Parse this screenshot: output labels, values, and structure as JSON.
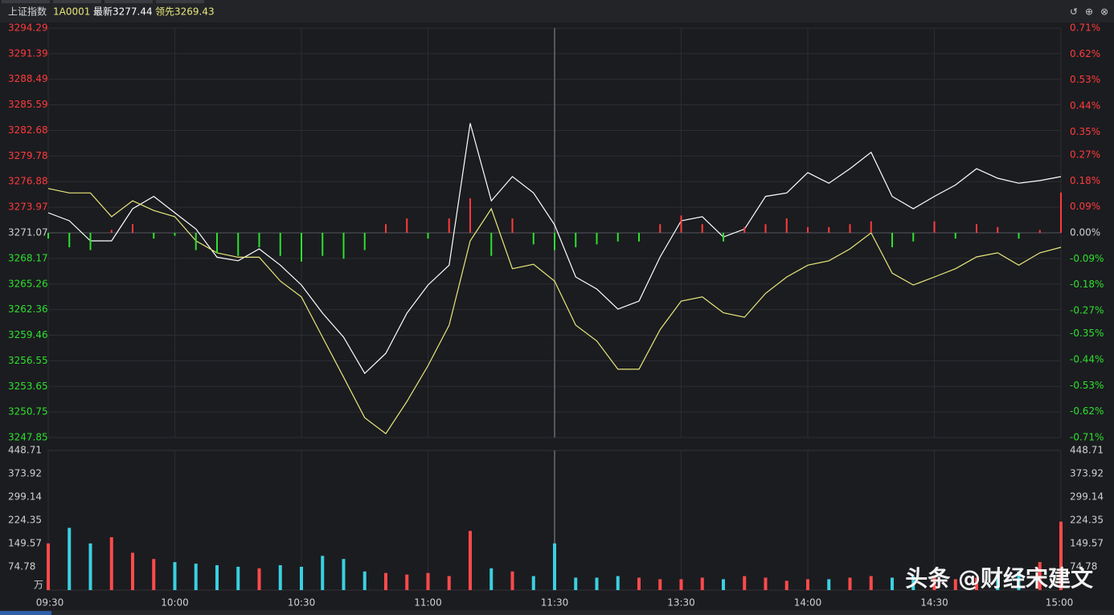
{
  "toolbar": {
    "name": "上证指数",
    "code": "1A0001",
    "latest": "最新3277.44",
    "lead": "领先3269.43"
  },
  "watermark": "头条 @财经宋建文",
  "chart_data": [
    {
      "type": "line",
      "x": [
        0,
        5,
        10,
        15,
        20,
        25,
        30,
        35,
        40,
        45,
        50,
        55,
        60,
        65,
        70,
        75,
        80,
        85,
        90,
        95,
        100,
        105,
        110,
        115,
        120,
        125,
        130,
        135,
        140,
        145,
        150,
        155,
        160,
        165,
        170,
        175,
        180,
        185,
        190,
        195,
        200,
        205,
        210,
        215,
        220,
        225,
        230,
        235,
        240
      ],
      "xlim": [
        0,
        240
      ],
      "xticks": [
        0,
        30,
        60,
        90,
        120,
        150,
        180,
        210,
        240
      ],
      "ylim": [
        3247.85,
        3294.29
      ],
      "yticks": [
        3247.85,
        3250.75,
        3253.65,
        3256.55,
        3259.46,
        3262.36,
        3265.26,
        3268.17,
        3271.07,
        3273.97,
        3276.88,
        3279.78,
        3282.68,
        3285.59,
        3288.49,
        3291.39,
        3294.29
      ],
      "y2lim": [
        -0.71,
        0.71
      ],
      "y2ticks": [
        {
          "value": -0.71,
          "label": "-0.71%"
        },
        {
          "value": -0.62,
          "label": "-0.62%"
        },
        {
          "value": -0.53,
          "label": "-0.53%"
        },
        {
          "value": -0.44,
          "label": "-0.44%"
        },
        {
          "value": -0.35,
          "label": "-0.35%"
        },
        {
          "value": -0.27,
          "label": "-0.27%"
        },
        {
          "value": -0.18,
          "label": "-0.18%"
        },
        {
          "value": -0.09,
          "label": "-0.09%"
        },
        {
          "value": 0,
          "label": "0.00%"
        },
        {
          "value": 0.09,
          "label": "0.09%"
        },
        {
          "value": 0.18,
          "label": "0.18%"
        },
        {
          "value": 0.27,
          "label": "0.27%"
        },
        {
          "value": 0.35,
          "label": "0.35%"
        },
        {
          "value": 0.44,
          "label": "0.44%"
        },
        {
          "value": 0.53,
          "label": "0.53%"
        },
        {
          "value": 0.62,
          "label": "0.62%"
        },
        {
          "value": 0.71,
          "label": "0.71%"
        }
      ],
      "grid": true,
      "up_color": "#ff3b3b",
      "down_color": "#2ee02e",
      "series": [
        {
          "color": "#ffffff",
          "values": [
            3273.35,
            3272.44,
            3270.16,
            3270.16,
            3273.8,
            3275.2,
            3273.35,
            3271.5,
            3268.3,
            3267.9,
            3269.25,
            3267.4,
            3265.15,
            3261.96,
            3259.23,
            3255.13,
            3257.4,
            3261.96,
            3265.15,
            3267.4,
            3283.5,
            3274.7,
            3277.45,
            3275.6,
            3271.98,
            3266.06,
            3264.7,
            3262.42,
            3263.33,
            3268.34,
            3272.44,
            3272.9,
            3270.6,
            3271.5,
            3275.2,
            3275.6,
            3277.9,
            3276.7,
            3278.35,
            3280.2,
            3275.2,
            3273.8,
            3275.2,
            3276.5,
            3278.35,
            3277.26,
            3276.7,
            3277.0,
            3277.44
          ]
        },
        {
          "color": "#e8e87a",
          "values": [
            3276.1,
            3275.6,
            3275.6,
            3272.9,
            3274.7,
            3273.6,
            3272.9,
            3270.16,
            3268.8,
            3268.3,
            3268.3,
            3265.6,
            3263.8,
            3259.23,
            3254.7,
            3250.1,
            3248.3,
            3251.95,
            3256.0,
            3260.6,
            3270.16,
            3273.8,
            3267.0,
            3267.5,
            3265.6,
            3260.6,
            3258.8,
            3255.6,
            3255.6,
            3260.1,
            3263.33,
            3263.8,
            3262.0,
            3261.5,
            3264.2,
            3266.06,
            3267.4,
            3267.9,
            3269.25,
            3271.07,
            3266.5,
            3265.15,
            3266.06,
            3267.0,
            3268.34,
            3268.8,
            3267.4,
            3268.8,
            3269.43
          ]
        },
        {
          "type": "bar",
          "axis": "y2",
          "values": [
            -0.02,
            -0.05,
            -0.06,
            0.01,
            0.03,
            -0.02,
            -0.01,
            -0.06,
            -0.07,
            -0.08,
            -0.05,
            -0.08,
            -0.1,
            -0.08,
            -0.09,
            -0.06,
            0.03,
            0.05,
            -0.02,
            0.05,
            0.12,
            -0.08,
            0.05,
            -0.04,
            -0.06,
            -0.05,
            -0.04,
            -0.03,
            -0.03,
            0.03,
            0.06,
            0.03,
            -0.03,
            0.02,
            0.03,
            0.05,
            0.02,
            0.02,
            0.03,
            0.04,
            -0.05,
            -0.03,
            0.04,
            -0.02,
            0.03,
            0.02,
            -0.02,
            0.01,
            0.14
          ]
        }
      ]
    },
    {
      "type": "bar",
      "unit": "万",
      "x": [
        0,
        5,
        10,
        15,
        20,
        25,
        30,
        35,
        40,
        45,
        50,
        55,
        60,
        65,
        70,
        75,
        80,
        85,
        90,
        95,
        100,
        105,
        110,
        115,
        120,
        125,
        130,
        135,
        140,
        145,
        150,
        155,
        160,
        165,
        170,
        175,
        180,
        185,
        190,
        195,
        200,
        205,
        210,
        215,
        220,
        225,
        230,
        235,
        240
      ],
      "xlim": [
        0,
        240
      ],
      "xticks": [
        {
          "value": 0,
          "label": "09:30"
        },
        {
          "value": 30,
          "label": "10:00"
        },
        {
          "value": 60,
          "label": "10:30"
        },
        {
          "value": 90,
          "label": "11:00"
        },
        {
          "value": 120,
          "label": "11:30"
        },
        {
          "value": 150,
          "label": "13:30"
        },
        {
          "value": 180,
          "label": "14:00"
        },
        {
          "value": 210,
          "label": "14:30"
        },
        {
          "value": 240,
          "label": "15:00"
        }
      ],
      "ylim": [
        0,
        448.71
      ],
      "yticks": [
        74.78,
        149.57,
        224.35,
        299.14,
        373.92,
        448.71
      ],
      "up_color": "#ff4a4a",
      "down_color": "#3ad0e0",
      "values": [
        150,
        200,
        150,
        170,
        120,
        100,
        90,
        85,
        80,
        75,
        70,
        80,
        75,
        110,
        100,
        60,
        55,
        50,
        55,
        45,
        190,
        70,
        60,
        45,
        150,
        40,
        40,
        45,
        40,
        35,
        35,
        40,
        35,
        45,
        40,
        30,
        35,
        35,
        40,
        45,
        40,
        45,
        40,
        35,
        40,
        50,
        60,
        90,
        220
      ]
    }
  ]
}
